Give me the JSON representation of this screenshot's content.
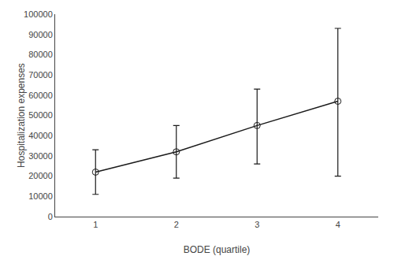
{
  "chart_data": {
    "type": "line",
    "x": [
      1,
      2,
      3,
      4
    ],
    "values": [
      22000,
      32000,
      45000,
      57000
    ],
    "error_plus": [
      11000,
      13000,
      18000,
      36000
    ],
    "error_minus": [
      11000,
      13000,
      19000,
      37000
    ],
    "xlabel": "BODE (quartile)",
    "ylabel": "Hospitalization expenses",
    "xlim": [
      0.5,
      4.5
    ],
    "ylim": [
      0,
      100000
    ],
    "xticks": [
      1,
      2,
      3,
      4
    ],
    "yticks": [
      0,
      10000,
      20000,
      30000,
      40000,
      50000,
      60000,
      70000,
      80000,
      90000,
      100000
    ],
    "color": "#1a1a1a",
    "marker": "circle-open",
    "grid": false
  }
}
